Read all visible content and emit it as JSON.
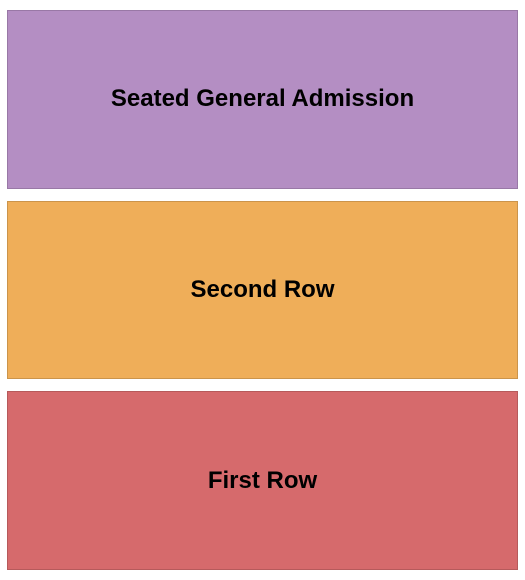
{
  "seating_chart": {
    "type": "infographic",
    "background_color": "#ffffff",
    "gap": 12,
    "padding": "10px 7px",
    "label_fontsize": 24,
    "label_fontweight": "bold",
    "label_color": "#000000",
    "border_color": "rgba(0,0,0,0.15)",
    "sections": [
      {
        "id": "seated-ga",
        "label": "Seated General Admission",
        "background_color": "#b48ec3",
        "order": 0
      },
      {
        "id": "second-row",
        "label": "Second Row",
        "background_color": "#efae59",
        "order": 1
      },
      {
        "id": "first-row",
        "label": "First Row",
        "background_color": "#d66a6c",
        "order": 2
      }
    ]
  }
}
